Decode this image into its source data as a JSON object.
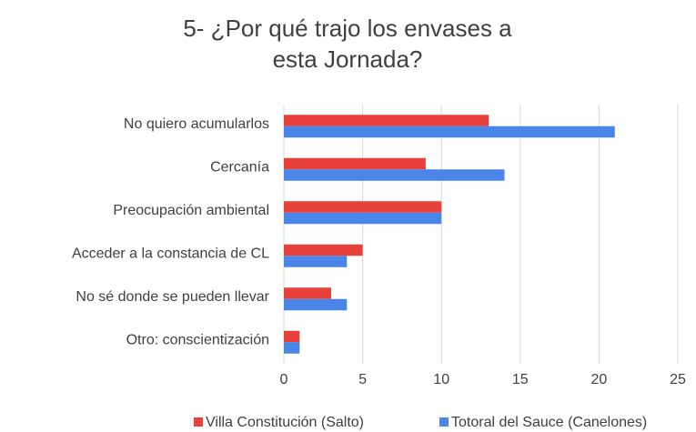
{
  "chart_data": {
    "type": "hbar",
    "title": "5- ¿Por qué trajo los envases a esta Jornada?",
    "categories": [
      "No quiero acumularlos",
      "Cercanía",
      "Preocupación ambiental",
      "Acceder a la constancia de CL",
      "No sé donde se pueden llevar",
      "Otro: conscientización"
    ],
    "series": [
      {
        "name": "Villa Constitución (Salto)",
        "color": "#e8403a",
        "values": [
          13,
          9,
          10,
          5,
          3,
          1
        ]
      },
      {
        "name": "Totoral del Sauce (Canelones)",
        "color": "#4a86e8",
        "values": [
          21,
          14,
          10,
          4,
          4,
          1
        ]
      }
    ],
    "xlim": [
      0,
      25
    ],
    "xticks": [
      0,
      5,
      10,
      15,
      20,
      25
    ],
    "grid": true,
    "legend": "bottom"
  }
}
